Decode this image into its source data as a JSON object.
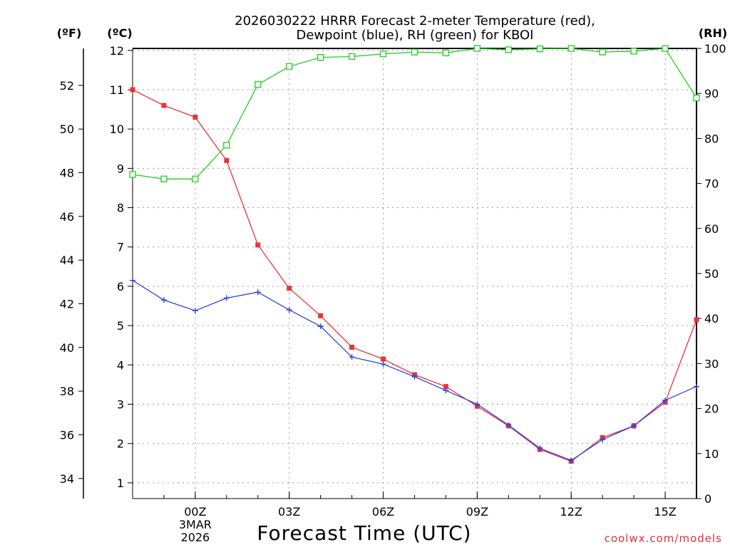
{
  "chart_data": {
    "type": "line",
    "title_line1": "2026030222 HRRR Forecast 2-meter Temperature (red),",
    "title_line2": "Dewpoint (blue), RH (green) for KBOI",
    "xlabel": "Forecast Time (UTC)",
    "credit": "coolwx.com/models",
    "unit_f": "(ºF)",
    "unit_c": "(ºC)",
    "unit_rh": "(RH)",
    "x_hours": [
      -2,
      -1,
      0,
      1,
      2,
      3,
      4,
      5,
      6,
      7,
      8,
      9,
      10,
      11,
      12,
      13,
      14,
      15,
      16
    ],
    "xlim": [
      -2,
      16
    ],
    "x_ticks": [
      {
        "hour": 0,
        "label": "00Z",
        "sub1": "3MAR",
        "sub2": "2026"
      },
      {
        "hour": 3,
        "label": "03Z"
      },
      {
        "hour": 6,
        "label": "06Z"
      },
      {
        "hour": 9,
        "label": "09Z"
      },
      {
        "hour": 12,
        "label": "12Z"
      },
      {
        "hour": 15,
        "label": "15Z"
      }
    ],
    "ylim_c": [
      0.6,
      12.05
    ],
    "ylim_rh": [
      0,
      100
    ],
    "yticks_c": [
      "1",
      "2",
      "3",
      "4",
      "5",
      "6",
      "7",
      "8",
      "9",
      "10",
      "11",
      "12"
    ],
    "yticks_f": [
      "34",
      "36",
      "38",
      "40",
      "42",
      "44",
      "46",
      "48",
      "50",
      "52"
    ],
    "yticks_rh": [
      "0",
      "10",
      "20",
      "30",
      "40",
      "50",
      "60",
      "70",
      "80",
      "90",
      "100"
    ],
    "colors": {
      "temperature": "#e8333b",
      "dewpoint": "#3344e0",
      "rh": "#22cc22",
      "grid": "#999999",
      "credit": "#e0303a"
    },
    "series": [
      {
        "name": "Temperature (red)",
        "units": "C",
        "values": [
          11.0,
          10.6,
          10.3,
          9.2,
          7.05,
          5.95,
          5.25,
          4.45,
          4.15,
          3.75,
          3.45,
          2.95,
          2.45,
          1.85,
          1.55,
          2.15,
          2.45,
          3.05,
          5.15
        ]
      },
      {
        "name": "Dewpoint (blue)",
        "units": "C",
        "values": [
          6.15,
          5.65,
          5.38,
          5.7,
          5.85,
          5.4,
          4.98,
          4.2,
          4.02,
          3.7,
          3.35,
          3.0,
          2.47,
          1.88,
          1.57,
          2.1,
          2.45,
          3.1,
          3.45
        ]
      },
      {
        "name": "RH (green)",
        "units": "%",
        "values": [
          72,
          71,
          71,
          78.5,
          92,
          96,
          98,
          98.2,
          98.8,
          99.2,
          99,
          100,
          99.7,
          99.9,
          100,
          99.2,
          99.4,
          100,
          89
        ]
      }
    ]
  }
}
